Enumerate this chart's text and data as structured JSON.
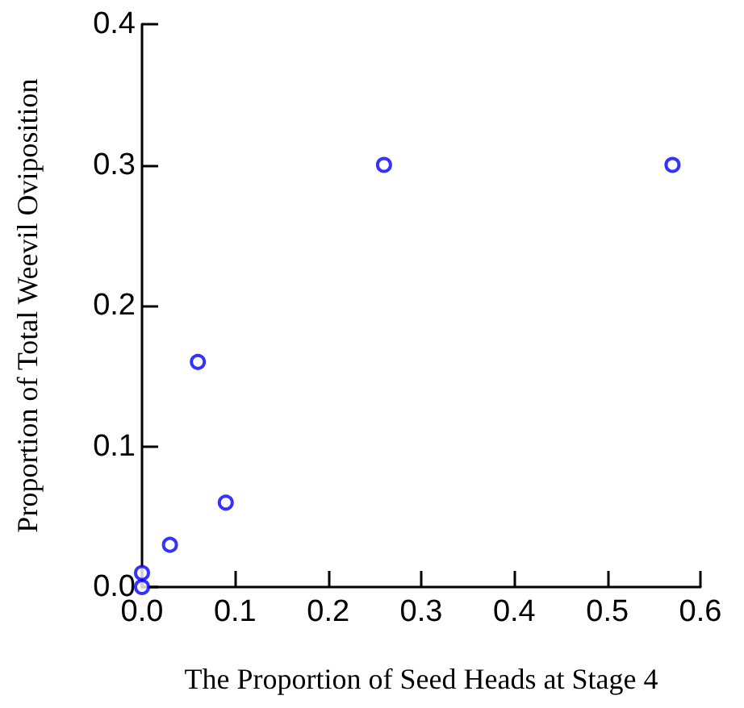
{
  "chart_data": {
    "type": "scatter",
    "xlabel": "The Proportion of Seed Heads at Stage 4",
    "ylabel": "Proportion of Total Weevil Oviposition",
    "x": [
      0,
      0,
      0.03,
      0.06,
      0.09,
      0.26,
      0.57
    ],
    "series": [
      {
        "color": "#0000ff",
        "values": [
          0,
          0.01,
          0.03,
          0.16,
          0.06,
          0.3,
          0.3
        ]
      }
    ],
    "xlim": [
      0,
      0.6
    ],
    "xticks": [
      {
        "value": 0,
        "label": "0.0"
      },
      0.1,
      0.2,
      0.3,
      0.4,
      0.5,
      0.6
    ],
    "ylim": [
      0,
      0.4
    ],
    "yticks": [
      {
        "value": 0,
        "label": "0.0"
      },
      0.1,
      0.2,
      0.3,
      0.4
    ],
    "marker": "circle",
    "grid": false
  }
}
